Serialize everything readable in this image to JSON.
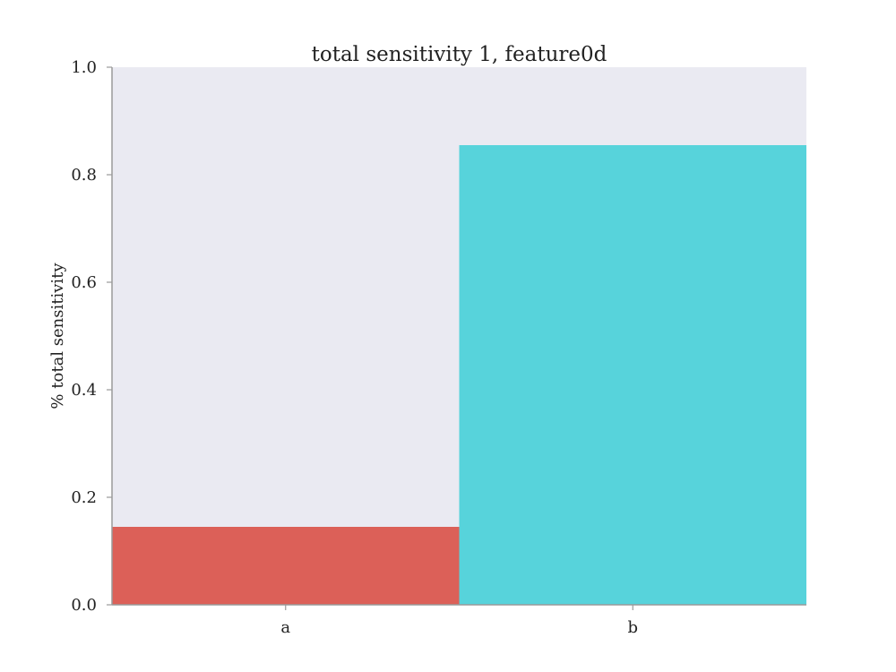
{
  "chart_data": {
    "type": "bar",
    "title": "total sensitivity 1, feature0d",
    "xlabel": "",
    "ylabel": "% total sensitivity",
    "categories": [
      "a",
      "b"
    ],
    "values": [
      0.145,
      0.855
    ],
    "ylim": [
      0.0,
      1.0
    ],
    "yticks": [
      "0.0",
      "0.2",
      "0.4",
      "0.6",
      "0.8",
      "1.0"
    ],
    "grid": false,
    "colors": {
      "background": "#eaeaf2",
      "bars": [
        "#dc6058",
        "#57d3db"
      ],
      "axis": "#9a9a9a"
    }
  }
}
